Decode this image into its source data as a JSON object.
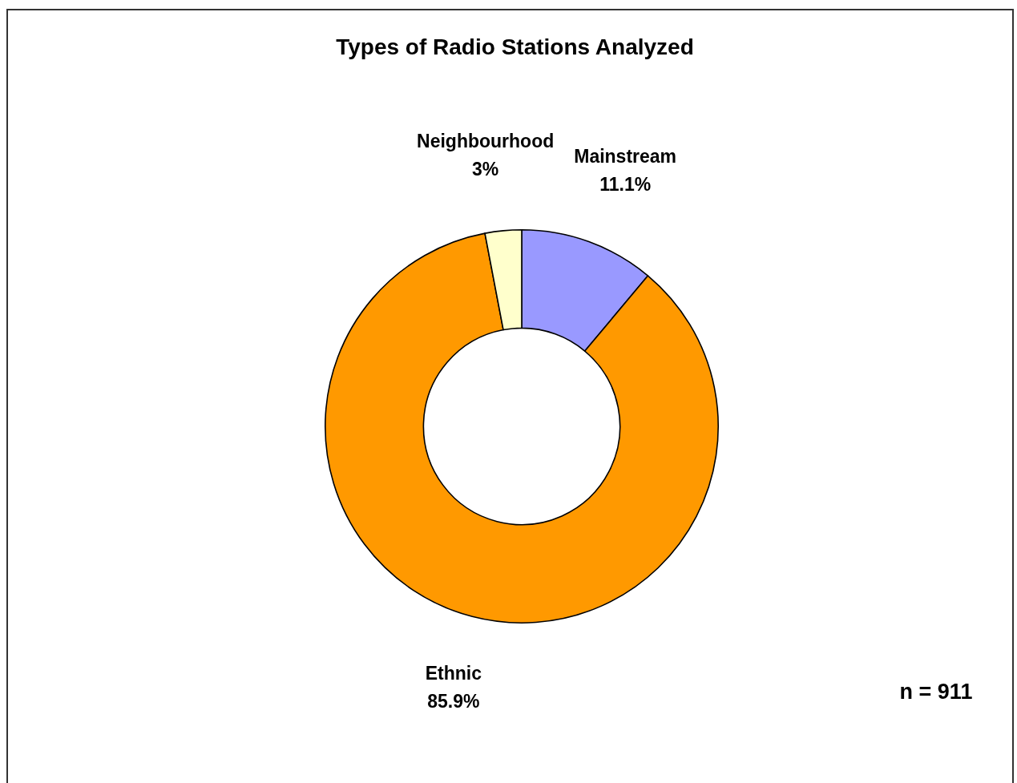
{
  "chart_data": {
    "type": "donut",
    "title": "Types of Radio Stations Analyzed",
    "categories": [
      "Mainstream",
      "Ethnic",
      "Neighbourhood"
    ],
    "values": [
      11.1,
      85.9,
      3
    ],
    "colors": [
      "#9999ff",
      "#ff9900",
      "#ffffcc"
    ],
    "value_labels": [
      "11.1%",
      "85.9%",
      "3%"
    ],
    "annotations": [
      "n = 911"
    ]
  }
}
